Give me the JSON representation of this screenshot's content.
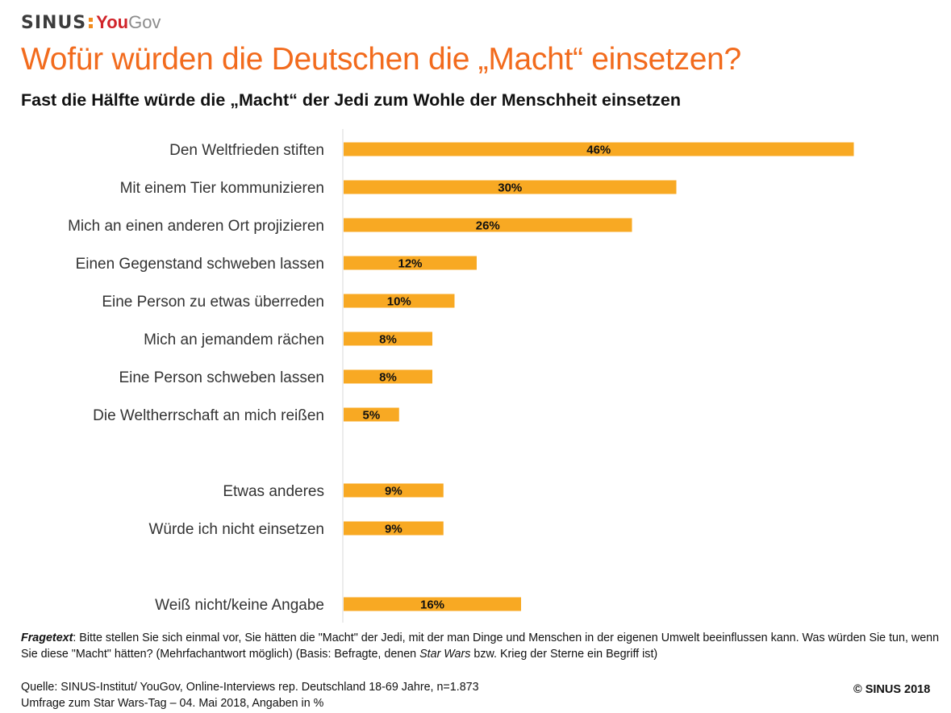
{
  "logo": {
    "sinus": "SINUS",
    "you": "You",
    "gov": "Gov"
  },
  "header": {
    "title": "Wofür würden die Deutschen die „Macht“ einsetzen?",
    "subtitle": "Fast die Hälfte würde die „Macht“ der Jedi zum Wohle der Menschheit einsetzen"
  },
  "colors": {
    "bar": "#f8a923",
    "title": "#f26b1d",
    "axis": "#d9d9d9"
  },
  "chart_data": {
    "type": "bar",
    "orientation": "horizontal",
    "title": "Wofür würden die Deutschen die „Macht“ einsetzen?",
    "xlabel": "",
    "ylabel": "",
    "unit": "%",
    "grid": false,
    "categories": [
      "Den Weltfrieden stiften",
      "Mit einem Tier kommunizieren",
      "Mich an einen anderen Ort projizieren",
      "Einen Gegenstand schweben lassen",
      "Eine Person zu etwas überreden",
      "Mich an jemandem rächen",
      "Eine Person schweben lassen",
      "Die Weltherrschaft an mich reißen",
      "Etwas anderes",
      "Würde ich nicht einsetzen",
      "Weiß nicht/keine Angabe"
    ],
    "values": [
      46,
      30,
      26,
      12,
      10,
      8,
      8,
      5,
      9,
      9,
      16
    ],
    "value_labels": [
      "46%",
      "30%",
      "26%",
      "12%",
      "10%",
      "8%",
      "8%",
      "5%",
      "9%",
      "9%",
      "16%"
    ],
    "groups": [
      0,
      0,
      0,
      0,
      0,
      0,
      0,
      0,
      1,
      1,
      2
    ]
  },
  "footer": {
    "fragetext_label": "Fragetext",
    "fragetext_1": ": Bitte stellen Sie sich einmal vor, Sie hätten die \"Macht\" der Jedi, mit der man Dinge und Menschen in der eigenen Umwelt beeinflussen kann. Was würden Sie tun, wenn Sie diese \"Macht\" hätten? (Mehrfachantwort möglich) (Basis: Befragte, denen ",
    "fragetext_italic": "Star Wars",
    "fragetext_2": " bzw. Krieg der Sterne ein Begriff ist)",
    "source_1": "Quelle: SINUS-Institut/ YouGov, Online-Interviews rep. Deutschland 18-69 Jahre, n=1.873",
    "source_2": "Umfrage zum Star Wars-Tag – 04. Mai 2018, Angaben in %",
    "copyright": "© SINUS 2018"
  }
}
